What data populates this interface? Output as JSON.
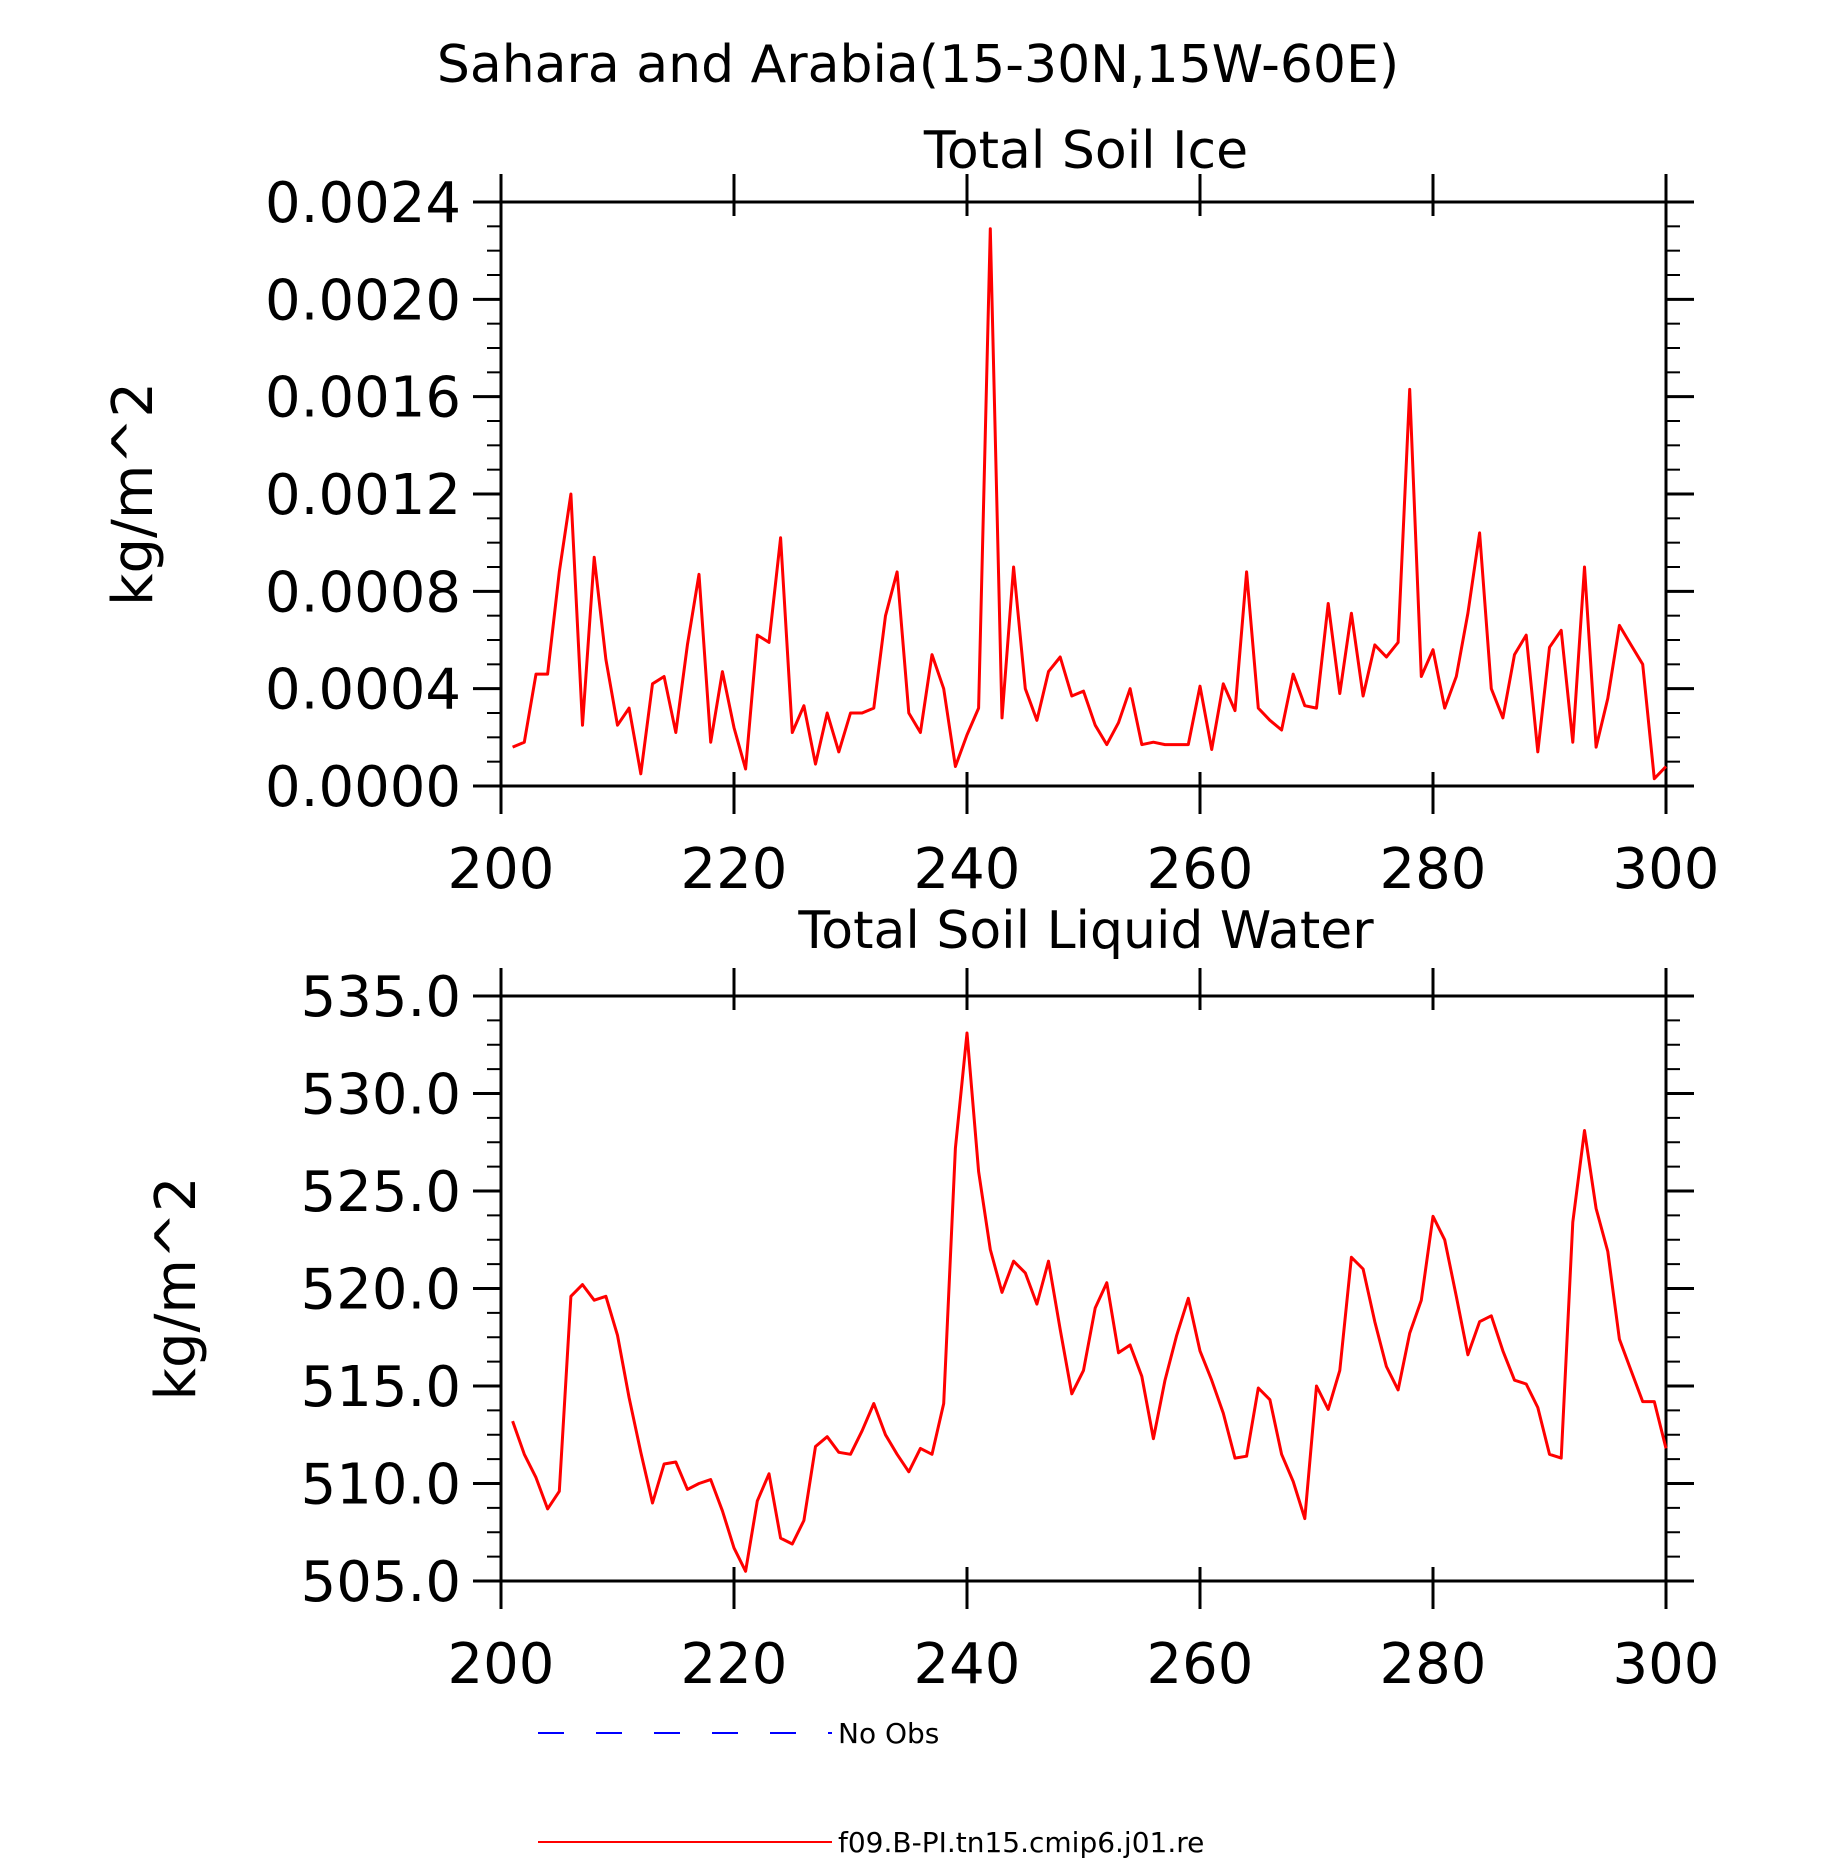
{
  "figure": {
    "title": "Sahara and Arabia(15-30N,15W-60E)"
  },
  "chart_data": [
    {
      "type": "line",
      "title": "Total Soil Ice",
      "xlabel": "",
      "ylabel": "kg/m^2",
      "xlim": [
        200,
        300
      ],
      "ylim": [
        0.0,
        0.0024
      ],
      "xticks": [
        "200",
        "220",
        "240",
        "260",
        "280",
        "300"
      ],
      "yticks": [
        "0.0000",
        "0.0004",
        "0.0008",
        "0.0012",
        "0.0016",
        "0.0020",
        "0.0024"
      ],
      "x_start": 201,
      "series": [
        {
          "name": "f09.B-PI.tn15.cmip6.j01.re",
          "color": "#ff0000",
          "values": [
            0.00016,
            0.00018,
            0.00046,
            0.00046,
            0.00088,
            0.0012,
            0.00025,
            0.00094,
            0.00052,
            0.00025,
            0.00032,
            5e-05,
            0.00042,
            0.00045,
            0.00022,
            0.00058,
            0.00087,
            0.00018,
            0.00047,
            0.00024,
            7e-05,
            0.00062,
            0.00059,
            0.00102,
            0.00022,
            0.00033,
            9e-05,
            0.0003,
            0.00014,
            0.0003,
            0.0003,
            0.00032,
            0.0007,
            0.00088,
            0.0003,
            0.00022,
            0.00054,
            0.0004,
            8e-05,
            0.00021,
            0.00032,
            0.00229,
            0.00028,
            0.0009,
            0.0004,
            0.00027,
            0.00047,
            0.00053,
            0.00037,
            0.00039,
            0.00025,
            0.00017,
            0.00026,
            0.0004,
            0.00017,
            0.00018,
            0.00017,
            0.00017,
            0.00017,
            0.00041,
            0.00015,
            0.00042,
            0.00031,
            0.00088,
            0.00032,
            0.00027,
            0.00023,
            0.00046,
            0.00033,
            0.00032,
            0.00075,
            0.00038,
            0.00071,
            0.00037,
            0.00058,
            0.00053,
            0.00059,
            0.00163,
            0.00045,
            0.00056,
            0.00032,
            0.00045,
            0.00071,
            0.00104,
            0.0004,
            0.00028,
            0.00054,
            0.00062,
            0.00014,
            0.00057,
            0.00064,
            0.00018,
            0.0009,
            0.00016,
            0.00036,
            0.00066,
            0.00058,
            0.0005,
            3e-05,
            8e-05
          ]
        }
      ]
    },
    {
      "type": "line",
      "title": "Total Soil Liquid Water",
      "xlabel": "",
      "ylabel": "kg/m^2",
      "xlim": [
        200,
        300
      ],
      "ylim": [
        505.0,
        535.0
      ],
      "xticks": [
        "200",
        "220",
        "240",
        "260",
        "280",
        "300"
      ],
      "yticks": [
        "505.0",
        "510.0",
        "515.0",
        "520.0",
        "525.0",
        "530.0",
        "535.0"
      ],
      "x_start": 201,
      "series": [
        {
          "name": "f09.B-PI.tn15.cmip6.j01.re",
          "color": "#ff0000",
          "values": [
            513.2,
            511.5,
            510.3,
            508.7,
            509.6,
            519.6,
            520.2,
            519.4,
            519.6,
            517.6,
            514.4,
            511.6,
            509.0,
            511.0,
            511.1,
            509.7,
            510.0,
            510.2,
            508.6,
            506.7,
            505.5,
            509.1,
            510.5,
            507.2,
            506.9,
            508.1,
            511.9,
            512.4,
            511.6,
            511.5,
            512.7,
            514.1,
            512.5,
            511.5,
            510.6,
            511.8,
            511.5,
            514.1,
            527.2,
            533.1,
            526.0,
            522.0,
            519.8,
            521.4,
            520.8,
            519.2,
            521.4,
            517.9,
            514.6,
            515.8,
            519.0,
            520.3,
            516.7,
            517.1,
            515.5,
            512.3,
            515.3,
            517.6,
            519.5,
            516.8,
            515.3,
            513.6,
            511.3,
            511.4,
            514.9,
            514.3,
            511.5,
            510.1,
            508.2,
            515.0,
            513.8,
            515.8,
            521.6,
            521.0,
            518.3,
            516.0,
            514.8,
            517.7,
            519.4,
            523.7,
            522.5,
            519.6,
            516.6,
            518.3,
            518.6,
            516.8,
            515.3,
            515.1,
            513.9,
            511.5,
            511.3,
            523.4,
            528.1,
            524.1,
            521.9,
            517.4,
            515.8,
            514.2,
            514.2,
            511.8
          ]
        }
      ]
    }
  ],
  "legend": {
    "items": [
      {
        "label": "No Obs",
        "color": "#0000ff",
        "style": "dashed"
      },
      {
        "label": "f09.B-PI.tn15.cmip6.j01.re",
        "color": "#ff0000",
        "style": "solid"
      }
    ]
  }
}
